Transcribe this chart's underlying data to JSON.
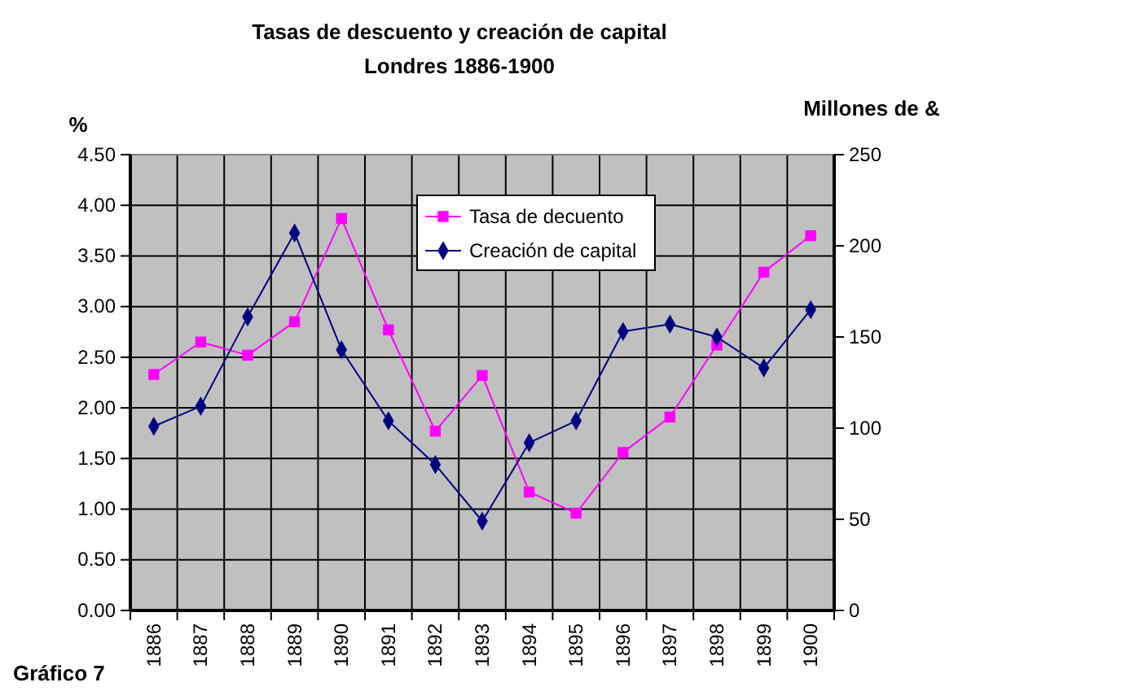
{
  "chart_data": {
    "type": "line",
    "title": "Tasas de descuento y creación de capital",
    "subtitle": "Londres 1886-1900",
    "ylabel": "%",
    "y2label": "Millones de &",
    "categories": [
      "1886",
      "1887",
      "1888",
      "1889",
      "1890",
      "1891",
      "1892",
      "1893",
      "1894",
      "1895",
      "1896",
      "1897",
      "1898",
      "1899",
      "1900"
    ],
    "series": [
      {
        "name": "Tasa de decuento",
        "color": "#ff00ff",
        "marker": "square",
        "values": [
          2.33,
          2.65,
          2.52,
          2.85,
          3.87,
          2.77,
          1.77,
          2.32,
          1.17,
          0.96,
          1.56,
          1.91,
          2.62,
          3.34,
          3.7
        ]
      },
      {
        "name": "Creación de capital",
        "color": "#000080",
        "marker": "diamond",
        "axis": "y2",
        "values": [
          101,
          112,
          161,
          207,
          143,
          104,
          80,
          49,
          92,
          104,
          153,
          157,
          150,
          133,
          165
        ]
      }
    ],
    "ylim": [
      0,
      4.5
    ],
    "yticks": [
      {
        "value": 0,
        "label": "0.00"
      },
      {
        "value": 0.5,
        "label": "0.50"
      },
      {
        "value": 1,
        "label": "1.00"
      },
      {
        "value": 1.5,
        "label": "1.50"
      },
      {
        "value": 2,
        "label": "2.00"
      },
      {
        "value": 2.5,
        "label": "2.50"
      },
      {
        "value": 3,
        "label": "3.00"
      },
      {
        "value": 3.5,
        "label": "3.50"
      },
      {
        "value": 4,
        "label": "4.00"
      },
      {
        "value": 4.5,
        "label": "4.50"
      }
    ],
    "y2lim": [
      0,
      250
    ],
    "y2ticks": [
      0,
      50,
      100,
      150,
      200,
      250
    ],
    "grid": true,
    "legend": "top",
    "annotations": [
      "Gráfico 7"
    ]
  }
}
